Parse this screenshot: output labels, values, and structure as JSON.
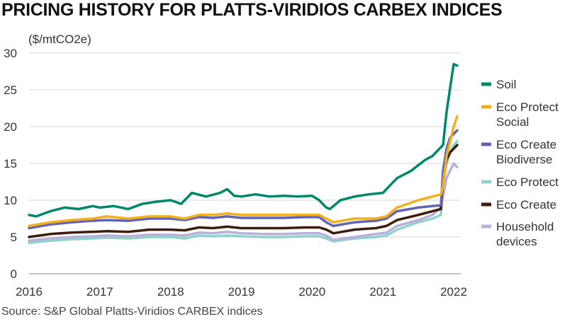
{
  "title": "PRICING HISTORY FOR PLATTS-VIRIDIOS CARBEX INDICES",
  "source": "Source: S&P Global Platts-Viridios CARBEX indices",
  "chart_data": {
    "type": "line",
    "ylabel": "($/mtCO2e)",
    "ylim": [
      0,
      30
    ],
    "yticks": [
      "0",
      "5",
      "10",
      "15",
      "20",
      "25",
      "30"
    ],
    "xlim": [
      2016,
      2022.1
    ],
    "xticks": [
      "2016",
      "2017",
      "2018",
      "2019",
      "2020",
      "2021",
      "2022"
    ],
    "grid": true,
    "legend_position": "right",
    "series": [
      {
        "name": "Soil",
        "color": "#00876c",
        "x": [
          2016.0,
          2016.1,
          2016.3,
          2016.5,
          2016.7,
          2016.9,
          2017.0,
          2017.2,
          2017.4,
          2017.6,
          2017.8,
          2018.0,
          2018.15,
          2018.3,
          2018.5,
          2018.7,
          2018.8,
          2018.9,
          2019.0,
          2019.2,
          2019.4,
          2019.6,
          2019.8,
          2020.0,
          2020.1,
          2020.2,
          2020.25,
          2020.4,
          2020.6,
          2020.8,
          2021.0,
          2021.1,
          2021.2,
          2021.4,
          2021.6,
          2021.7,
          2021.8,
          2021.85,
          2021.9,
          2022.0,
          2022.05
        ],
        "y": [
          8,
          7.8,
          8.5,
          9,
          8.8,
          9.2,
          9,
          9.2,
          8.8,
          9.5,
          9.8,
          10,
          9.5,
          11,
          10.5,
          11,
          11.5,
          10.6,
          10.5,
          10.8,
          10.5,
          10.6,
          10.5,
          10.6,
          10,
          9,
          8.8,
          10,
          10.5,
          10.8,
          11,
          12,
          13,
          14,
          15.5,
          16,
          17,
          17.5,
          22,
          28.5,
          28.3
        ]
      },
      {
        "name": "Eco Protect Social",
        "color": "#f2b01e",
        "x": [
          2016.0,
          2016.3,
          2016.6,
          2016.9,
          2017.1,
          2017.4,
          2017.7,
          2018.0,
          2018.2,
          2018.4,
          2018.6,
          2018.8,
          2019.0,
          2019.3,
          2019.6,
          2019.9,
          2020.1,
          2020.2,
          2020.3,
          2020.6,
          2020.9,
          2021.05,
          2021.2,
          2021.5,
          2021.7,
          2021.82,
          2021.85,
          2021.9,
          2021.95,
          2022.0,
          2022.05
        ],
        "y": [
          6.5,
          7,
          7.3,
          7.5,
          7.8,
          7.5,
          7.8,
          7.8,
          7.5,
          8,
          8,
          8.2,
          8,
          8,
          8,
          8,
          8,
          7.5,
          7,
          7.5,
          7.5,
          7.8,
          9,
          10,
          10.5,
          10.8,
          12,
          16,
          18,
          20,
          21.4
        ]
      },
      {
        "name": "Eco Create Biodiverse",
        "color": "#6464b4",
        "x": [
          2016.0,
          2016.3,
          2016.6,
          2016.9,
          2017.1,
          2017.4,
          2017.7,
          2018.0,
          2018.2,
          2018.4,
          2018.6,
          2018.8,
          2019.0,
          2019.3,
          2019.6,
          2019.9,
          2020.1,
          2020.2,
          2020.3,
          2020.6,
          2020.9,
          2021.05,
          2021.2,
          2021.5,
          2021.7,
          2021.82,
          2021.85,
          2021.9,
          2021.95,
          2022.0,
          2022.05
        ],
        "y": [
          6.2,
          6.7,
          7,
          7.2,
          7.3,
          7.2,
          7.5,
          7.5,
          7.3,
          7.7,
          7.6,
          7.8,
          7.6,
          7.6,
          7.6,
          7.7,
          7.7,
          7,
          6.5,
          7,
          7.2,
          7.5,
          8.5,
          9,
          9.2,
          9.3,
          14,
          17,
          18.5,
          19,
          19.5
        ]
      },
      {
        "name": "Eco Protect",
        "color": "#8fd4c8",
        "x": [
          2016.0,
          2016.3,
          2016.6,
          2016.9,
          2017.1,
          2017.4,
          2017.7,
          2018.0,
          2018.2,
          2018.4,
          2018.6,
          2018.8,
          2019.0,
          2019.3,
          2019.6,
          2019.9,
          2020.1,
          2020.2,
          2020.3,
          2020.6,
          2020.9,
          2021.05,
          2021.2,
          2021.5,
          2021.7,
          2021.82,
          2021.85,
          2021.9,
          2021.95,
          2022.0,
          2022.05
        ],
        "y": [
          4.2,
          4.5,
          4.7,
          4.8,
          4.9,
          4.8,
          5,
          5,
          4.8,
          5.2,
          5.1,
          5.2,
          5.1,
          5,
          5,
          5.1,
          5.1,
          4.8,
          4.4,
          4.8,
          5,
          5.2,
          6,
          7,
          7.5,
          8,
          12,
          15,
          16.5,
          17.5,
          18
        ]
      },
      {
        "name": "Eco Create",
        "color": "#3d1e0c",
        "x": [
          2016.0,
          2016.3,
          2016.6,
          2016.9,
          2017.1,
          2017.4,
          2017.7,
          2018.0,
          2018.2,
          2018.4,
          2018.6,
          2018.8,
          2019.0,
          2019.3,
          2019.6,
          2019.9,
          2020.1,
          2020.2,
          2020.3,
          2020.6,
          2020.9,
          2021.05,
          2021.2,
          2021.5,
          2021.7,
          2021.82,
          2021.85,
          2021.9,
          2021.95,
          2022.0,
          2022.05
        ],
        "y": [
          5,
          5.4,
          5.6,
          5.7,
          5.8,
          5.7,
          6,
          6,
          5.9,
          6.3,
          6.2,
          6.4,
          6.2,
          6.2,
          6.2,
          6.3,
          6.3,
          6,
          5.5,
          6,
          6.2,
          6.5,
          7.3,
          8,
          8.5,
          8.8,
          13,
          15.5,
          16.5,
          17,
          17.5
        ]
      },
      {
        "name": "Household devices",
        "color": "#b9b1dc",
        "x": [
          2016.0,
          2016.3,
          2016.6,
          2016.9,
          2017.1,
          2017.4,
          2017.7,
          2018.0,
          2018.2,
          2018.4,
          2018.6,
          2018.8,
          2019.0,
          2019.3,
          2019.6,
          2019.9,
          2020.1,
          2020.2,
          2020.3,
          2020.6,
          2020.9,
          2021.05,
          2021.2,
          2021.5,
          2021.7,
          2021.82,
          2021.85,
          2021.9,
          2021.95,
          2022.0,
          2022.05
        ],
        "y": [
          4.5,
          4.8,
          5,
          5.1,
          5.2,
          5.1,
          5.3,
          5.3,
          5.2,
          5.6,
          5.5,
          5.7,
          5.5,
          5.4,
          5.4,
          5.5,
          5.5,
          5.2,
          4.6,
          5,
          5.4,
          5.6,
          6.5,
          7.3,
          8,
          9,
          10.5,
          13,
          14,
          15,
          14.5
        ]
      }
    ]
  }
}
